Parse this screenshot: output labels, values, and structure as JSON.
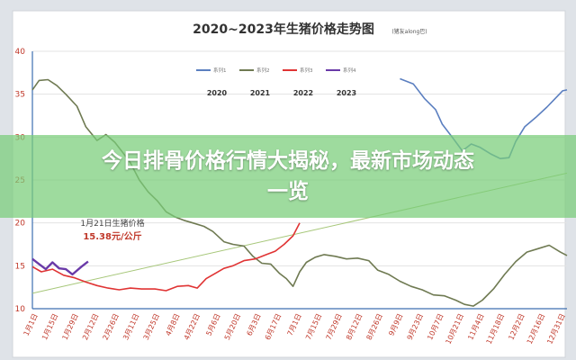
{
  "banner": {
    "line1": "今日排骨价格行情大揭秘，最新市场动态",
    "line2": "一览"
  },
  "chart_data": {
    "type": "line",
    "title": "2020~2023年生猪价格走势图",
    "subtitle": "(猪友along巴)",
    "ylim": [
      10,
      40
    ],
    "yticks": [
      10,
      15,
      20,
      25,
      30,
      35,
      40
    ],
    "x_range": [
      0,
      24
    ],
    "xtick_labels": [
      "1月1日",
      "1月15日",
      "1月29日",
      "2月12日",
      "2月26日",
      "3月11日",
      "3月25日",
      "4月8日",
      "4月22日",
      "5月6日",
      "5月20日",
      "6月3日",
      "6月17日",
      "7月1日",
      "7月15日",
      "7月29日",
      "8月12日",
      "8月26日",
      "9月9日",
      "9月23日",
      "10月7日",
      "10月21日",
      "11月4日",
      "11月18日",
      "12月2日",
      "12月16日",
      "12月31日"
    ],
    "grid": "horizontal",
    "legend_position": "top-center",
    "annotation": {
      "line1": "1月21日生猪价格",
      "line2": "15.38元/公斤",
      "x": 3.2,
      "y": 18.5
    },
    "series": [
      {
        "name": "系列1",
        "year": "2020",
        "color": "#5b7fc0",
        "x": [
          16.5,
          17.1,
          17.6,
          18.1,
          18.4,
          18.9,
          19.3,
          19.7,
          20.1,
          20.6,
          21.0,
          21.4,
          21.7,
          22.1,
          22.6,
          23.1,
          23.4,
          23.8,
          24.0
        ],
        "y": [
          36.8,
          36.2,
          34.5,
          33.2,
          31.5,
          29.8,
          28.4,
          29.2,
          28.8,
          28.0,
          27.5,
          27.6,
          29.5,
          31.2,
          32.3,
          33.5,
          34.3,
          35.4,
          35.5
        ]
      },
      {
        "name": "系列2",
        "year": "2021",
        "color": "#6f7a52",
        "x": [
          0,
          0.3,
          0.7,
          1.1,
          1.5,
          2.0,
          2.4,
          2.9,
          3.3,
          3.7,
          4.0,
          4.4,
          4.8,
          5.2,
          5.6,
          6.0,
          6.4,
          6.8,
          7.2,
          7.7,
          8.1,
          8.6,
          9.0,
          9.5,
          9.9,
          10.3,
          10.7,
          11.1,
          11.4,
          11.7,
          12.0,
          12.3,
          12.7,
          13.1,
          13.6,
          14.1,
          14.6,
          15.1,
          15.5,
          16.0,
          16.5,
          17.0,
          17.5,
          18.0,
          18.5,
          19.0,
          19.4,
          19.8,
          20.2,
          20.7,
          21.2,
          21.7,
          22.2,
          22.7,
          23.2,
          23.7,
          24.0
        ],
        "y": [
          35.5,
          36.6,
          36.7,
          36.0,
          35.0,
          33.6,
          31.2,
          29.6,
          30.3,
          29.4,
          28.4,
          27.0,
          25.0,
          23.6,
          22.6,
          21.3,
          20.7,
          20.3,
          20.0,
          19.6,
          19.0,
          17.8,
          17.5,
          17.3,
          16.1,
          15.3,
          15.2,
          14.1,
          13.5,
          12.6,
          14.3,
          15.4,
          16.0,
          16.3,
          16.1,
          15.8,
          15.9,
          15.6,
          14.5,
          14.0,
          13.2,
          12.6,
          12.2,
          11.6,
          11.5,
          11.0,
          10.5,
          10.3,
          11.0,
          12.3,
          14.0,
          15.5,
          16.6,
          17.0,
          17.4,
          16.6,
          16.2
        ]
      },
      {
        "name": "系列3",
        "year": "2022",
        "color": "#e03434",
        "x": [
          0,
          0.4,
          0.9,
          1.4,
          1.9,
          2.4,
          2.9,
          3.4,
          3.9,
          4.4,
          4.9,
          5.5,
          6.0,
          6.5,
          7.0,
          7.4,
          7.8,
          8.2,
          8.6,
          9.0,
          9.5,
          10.0,
          10.5,
          10.9,
          11.3,
          11.7,
          12.0
        ],
        "y": [
          14.9,
          14.3,
          14.6,
          13.9,
          13.6,
          13.1,
          12.7,
          12.4,
          12.2,
          12.4,
          12.3,
          12.3,
          12.1,
          12.6,
          12.7,
          12.4,
          13.5,
          14.1,
          14.7,
          15.0,
          15.6,
          15.8,
          16.3,
          16.7,
          17.5,
          18.5,
          20.0
        ]
      },
      {
        "name": "系列4",
        "year": "2023",
        "color": "#6a3aa8",
        "x": [
          0,
          0.3,
          0.6,
          0.9,
          1.2,
          1.5,
          1.8,
          2.2,
          2.5
        ],
        "y": [
          15.8,
          15.2,
          14.6,
          15.4,
          14.7,
          14.6,
          14.0,
          14.9,
          15.5
        ]
      }
    ],
    "trendline": {
      "color": "#a7c77a",
      "x": [
        0,
        24
      ],
      "y": [
        11.8,
        25.8
      ]
    }
  }
}
